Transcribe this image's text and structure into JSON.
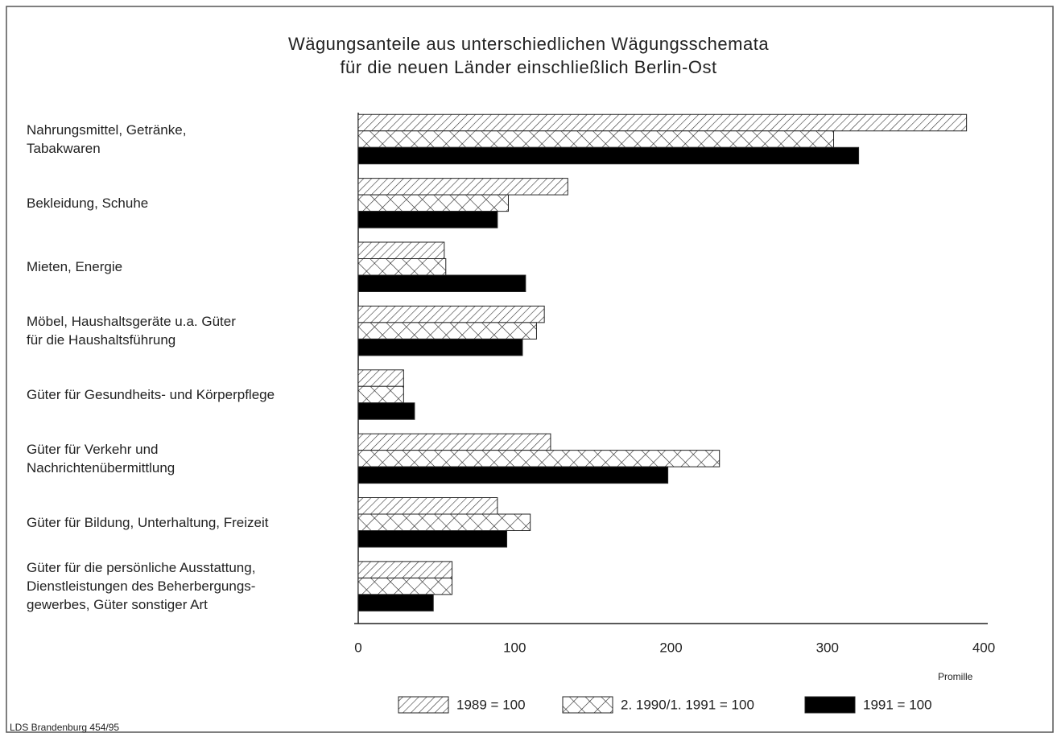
{
  "chart_data": {
    "type": "bar",
    "orientation": "horizontal",
    "title": "Wägungsanteile aus unterschiedlichen Wägungsschemata\nfür die neuen Länder einschließlich Berlin-Ost",
    "categories": [
      "Nahrungsmittel, Getränke,\nTabakwaren",
      "Bekleidung, Schuhe",
      "Mieten, Energie",
      "Möbel, Haushaltsgeräte u.a. Güter\nfür die Haushaltsführung",
      "Güter für Gesundheits- und Körperpflege",
      "Güter für Verkehr und\nNachrichtenübermittlung",
      "Güter für Bildung, Unterhaltung, Freizeit",
      "Güter für die persönliche Ausstattung,\nDienstleistungen des Beherbergungs-\ngewerbes, Güter sonstiger Art"
    ],
    "series": [
      {
        "name": "1989 = 100",
        "pattern": "hatch",
        "color": "#000000",
        "values": [
          389,
          134,
          55,
          119,
          29,
          123,
          89,
          60
        ]
      },
      {
        "name": "2. 1990/1. 1991 = 100",
        "pattern": "cross",
        "color": "#000000",
        "values": [
          304,
          96,
          56,
          114,
          29,
          231,
          110,
          60
        ]
      },
      {
        "name": "1991 = 100",
        "pattern": "solid",
        "color": "#000000",
        "values": [
          320,
          89,
          107,
          105,
          36,
          198,
          95,
          48
        ]
      }
    ],
    "xlabel": "Promille",
    "xlim": [
      0,
      400
    ],
    "xticks": [
      0,
      100,
      200,
      300,
      400
    ],
    "grid": false,
    "source": "LDS Brandenburg 454/95"
  }
}
